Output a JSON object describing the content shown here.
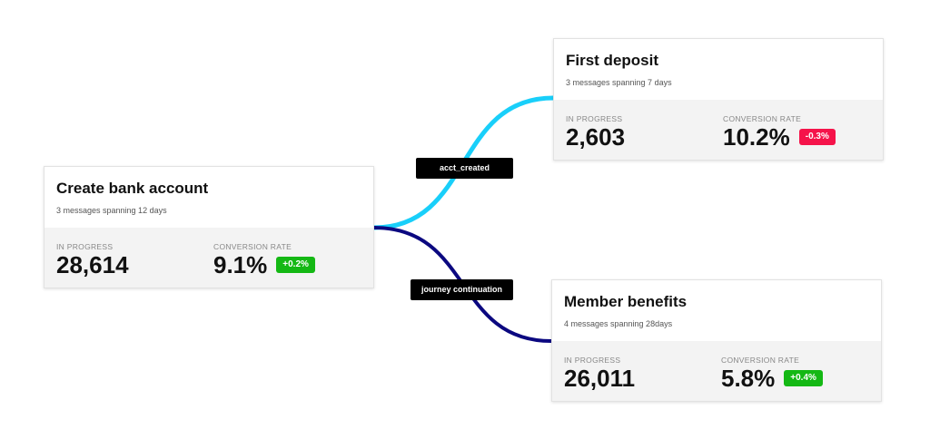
{
  "colors": {
    "link_acct_created": "#19cffa",
    "link_journey_continuation": "#0b0880",
    "badge_positive": "#14b814",
    "badge_negative": "#f5134a"
  },
  "nodes": [
    {
      "title": "Create bank account",
      "subtitle": "3 messages spanning 12 days",
      "in_progress_label": "IN PROGRESS",
      "in_progress": "28,614",
      "conversion_label": "CONVERSION RATE",
      "conversion_rate": "9.1%",
      "change": "+0.2%",
      "change_direction": "positive"
    },
    {
      "title": "First deposit",
      "subtitle": "3 messages spanning 7 days",
      "in_progress_label": "IN PROGRESS",
      "in_progress": "2,603",
      "conversion_label": "CONVERSION RATE",
      "conversion_rate": "10.2%",
      "change": "-0.3%",
      "change_direction": "negative"
    },
    {
      "title": "Member benefits",
      "subtitle": "4 messages spanning 28days",
      "in_progress_label": "IN PROGRESS",
      "in_progress": "26,011",
      "conversion_label": "CONVERSION RATE",
      "conversion_rate": "5.8%",
      "change": "+0.4%",
      "change_direction": "positive"
    }
  ],
  "links": [
    {
      "from": "Create bank account",
      "to": "First deposit",
      "label": "acct_created"
    },
    {
      "from": "Create bank account",
      "to": "Member benefits",
      "label": "journey continuation"
    }
  ]
}
